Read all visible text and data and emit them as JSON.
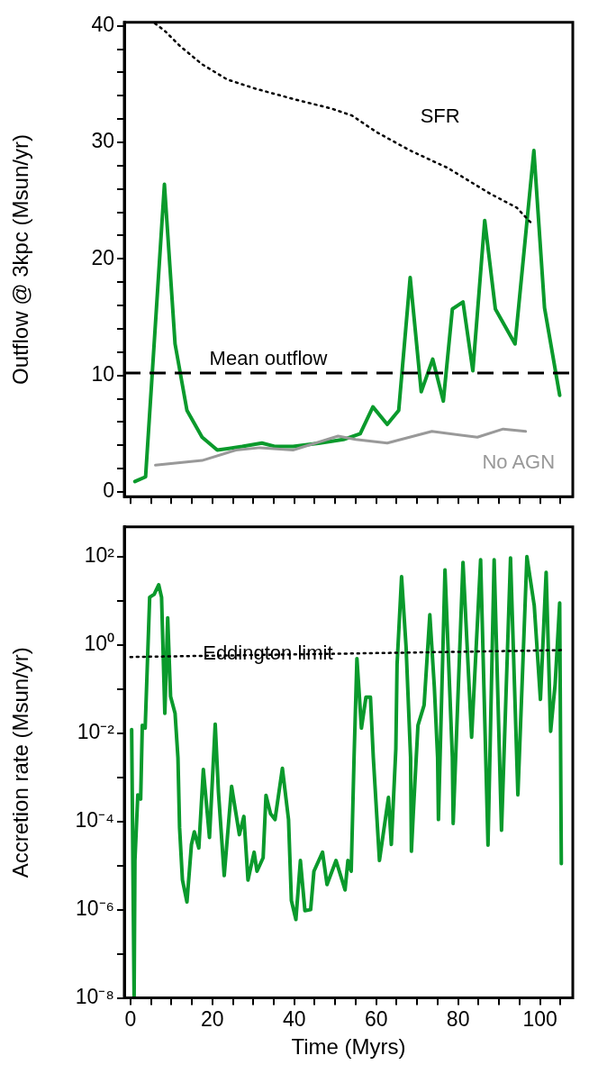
{
  "chart_data": [
    {
      "type": "line",
      "ylabel": "Outflow @ 3kpc (Msun/yr)",
      "xlim": [
        -1.5,
        108
      ],
      "ylim": [
        -0.4,
        40.3
      ],
      "xticks": [
        0,
        5,
        10,
        15,
        20,
        25,
        30,
        35,
        40,
        45,
        50,
        55,
        60,
        65,
        70,
        75,
        80,
        85,
        90,
        95,
        100,
        105
      ],
      "yticks": [
        0,
        {
          "value": 2,
          "label": null
        },
        {
          "value": 4,
          "label": null
        },
        {
          "value": 6,
          "label": null
        },
        {
          "value": 8,
          "label": null
        },
        10,
        {
          "value": 12,
          "label": null
        },
        {
          "value": 14,
          "label": null
        },
        {
          "value": 16,
          "label": null
        },
        {
          "value": 18,
          "label": null
        },
        20,
        {
          "value": 22,
          "label": null
        },
        {
          "value": 24,
          "label": null
        },
        {
          "value": 26,
          "label": null
        },
        {
          "value": 28,
          "label": null
        },
        30,
        {
          "value": 32,
          "label": null
        },
        {
          "value": 34,
          "label": null
        },
        {
          "value": 36,
          "label": null
        },
        {
          "value": 38,
          "label": null
        },
        40
      ],
      "tick_labels": "y",
      "grid": false,
      "legend": false,
      "marker": "none",
      "ref_lines": [
        {
          "axis": "y",
          "value": 10.2,
          "label": "Mean outflow",
          "color": "#000000",
          "line_style": "dashed"
        }
      ],
      "series": [
        {
          "color": "#0a9a2c",
          "line_style": "solid",
          "x": [
            1.1,
            3.7,
            8.3,
            10.9,
            13.8,
            17.5,
            21.2,
            27.3,
            32.1,
            35.4,
            39.7,
            46.3,
            52,
            56.1,
            59.2,
            62.7,
            65.5,
            68.3,
            71,
            73.8,
            76.4,
            78.6,
            81.2,
            83.6,
            86.5,
            89.1,
            93.9,
            98.5,
            101.1,
            104.8
          ],
          "values": [
            0.9,
            1.3,
            26.4,
            12.7,
            7.0,
            4.7,
            3.6,
            3.9,
            4.2,
            3.9,
            3.9,
            4.2,
            4.5,
            5.0,
            7.3,
            5.8,
            7.0,
            18.4,
            8.6,
            11.4,
            7.8,
            15.7,
            16.3,
            10.4,
            23.3,
            15.7,
            12.7,
            29.3,
            15.8,
            8.3
          ]
        },
        {
          "name": "No AGN",
          "color": "#999999",
          "line_style": "solid",
          "x": [
            6.1,
            17.5,
            25.8,
            31.7,
            39.7,
            50.7,
            55,
            62.7,
            73.6,
            84.7,
            91,
            96.5
          ],
          "values": [
            2.3,
            2.7,
            3.6,
            3.8,
            3.6,
            4.8,
            4.5,
            4.2,
            5.2,
            4.7,
            5.4,
            5.2
          ]
        },
        {
          "name": "SFR",
          "color": "#000000",
          "line_style": "dotted",
          "x": [
            6,
            8.3,
            12,
            17.5,
            23.6,
            30.6,
            40,
            49.1,
            54.1,
            60,
            68.3,
            77.5,
            87.8,
            94.3,
            97.8
          ],
          "values": [
            40.2,
            39.6,
            38.3,
            36.7,
            35.4,
            34.6,
            33.7,
            32.9,
            32.3,
            30.9,
            29.3,
            27.8,
            25.6,
            24.4,
            23.1
          ]
        }
      ]
    },
    {
      "type": "line",
      "xlabel": "Time (Myrs)",
      "ylabel": "Accretion rate (Msun/yr)",
      "log": "y",
      "xlim": [
        -1.5,
        108
      ],
      "ylim": [
        1e-08,
        470
      ],
      "xticks": [
        {
          "value": 0,
          "label": "0"
        },
        {
          "value": 5,
          "label": null
        },
        {
          "value": 10,
          "label": null
        },
        {
          "value": 15,
          "label": null
        },
        {
          "value": 20,
          "label": "20"
        },
        {
          "value": 25,
          "label": null
        },
        {
          "value": 30,
          "label": null
        },
        {
          "value": 35,
          "label": null
        },
        {
          "value": 40,
          "label": "40"
        },
        {
          "value": 45,
          "label": null
        },
        {
          "value": 50,
          "label": null
        },
        {
          "value": 55,
          "label": null
        },
        {
          "value": 60,
          "label": "60"
        },
        {
          "value": 65,
          "label": null
        },
        {
          "value": 70,
          "label": null
        },
        {
          "value": 75,
          "label": null
        },
        {
          "value": 80,
          "label": "80"
        },
        {
          "value": 85,
          "label": null
        },
        {
          "value": 90,
          "label": null
        },
        {
          "value": 95,
          "label": null
        },
        {
          "value": 100,
          "label": "100"
        },
        {
          "value": 105,
          "label": null
        }
      ],
      "yticks": [
        {
          "value": 100,
          "label": "10²"
        },
        {
          "value": 10,
          "label": null
        },
        {
          "value": 1,
          "label": "10⁰"
        },
        {
          "value": 0.1,
          "label": null
        },
        {
          "value": 0.01,
          "label": "10⁻²"
        },
        {
          "value": 0.001,
          "label": null
        },
        {
          "value": 0.0001,
          "label": "10⁻⁴"
        },
        {
          "value": 1e-05,
          "label": null
        },
        {
          "value": 1e-06,
          "label": "10⁻⁶"
        },
        {
          "value": 1e-07,
          "label": null
        },
        {
          "value": 1e-08,
          "label": "10⁻⁸"
        }
      ],
      "grid": false,
      "legend": false,
      "marker": "none",
      "series": [
        {
          "color": "#0a9a2c",
          "line_style": "solid",
          "x": [
            0.3,
            0.9,
            1.1,
            1.8,
            2.5,
            2.9,
            3.6,
            4.7,
            5.8,
            6.9,
            7.6,
            8.4,
            9.1,
            9.8,
            10.9,
            11.6,
            12.0,
            12.7,
            13.8,
            14.9,
            15.6,
            16.7,
            17.8,
            19.3,
            20.4,
            20.7,
            21.5,
            22.9,
            24.7,
            26.6,
            27.7,
            28.7,
            30.2,
            30.9,
            32.4,
            33.1,
            34.2,
            35.3,
            37.1,
            38.6,
            39.3,
            40.4,
            41.5,
            42.6,
            44.0,
            44.8,
            46.9,
            48.0,
            50.2,
            52.4,
            53.1,
            53.9,
            54.6,
            55.3,
            56.4,
            57.5,
            58.6,
            59.3,
            60.8,
            63.0,
            63.7,
            64.8,
            65.1,
            66.2,
            67.3,
            68.4,
            68.6,
            69.1,
            70.2,
            71.7,
            73.1,
            74.2,
            75.0,
            75.2,
            76.8,
            78.6,
            78.8,
            81.2,
            83.3,
            85.5,
            87.3,
            88.8,
            90.6,
            92.8,
            94.6,
            96.8,
            98.6,
            100.1,
            101.5,
            102.6,
            103.7,
            104.8,
            105.2
          ],
          "values": [
            0.012,
            1e-08,
            1.3e-05,
            0.0004,
            0.00032,
            0.015,
            0.013,
            12,
            14,
            23,
            12,
            0.028,
            4.1,
            0.068,
            0.028,
            0.0028,
            7.2e-05,
            4.7e-06,
            1.5e-06,
            3e-05,
            5.8e-05,
            2.5e-05,
            0.0015,
            4.3e-05,
            0.0044,
            0.016,
            0.00045,
            5.9e-06,
            0.00062,
            5e-05,
            0.00013,
            4.7e-06,
            2e-05,
            7.4e-06,
            1.5e-05,
            0.00039,
            0.00015,
            0.00011,
            0.0016,
            0.00011,
            1.6e-06,
            6e-07,
            1.3e-05,
            9.5e-07,
            1e-06,
            7.4e-06,
            2e-05,
            3.7e-06,
            1.3e-05,
            2.8e-06,
            1.3e-05,
            7.4e-06,
            0.0028,
            0.49,
            0.013,
            0.065,
            0.065,
            0.0028,
            1.3e-05,
            0.00035,
            3e-05,
            0.0044,
            0.36,
            35,
            0.89,
            0.0028,
            2.1e-05,
            0.00018,
            0.015,
            0.043,
            4.8,
            0.11,
            0.0028,
            0.00011,
            50,
            0.0028,
            9e-05,
            74,
            0.0081,
            85,
            2.9e-05,
            85,
            6.3e-05,
            93,
            0.0004,
            100,
            7.6,
            0.058,
            44,
            0.011,
            0.13,
            8.9,
            1.1e-05
          ]
        },
        {
          "name": "Eddington limit",
          "color": "#000000",
          "line_style": "dotted",
          "x": [
            0,
            106
          ],
          "values": [
            0.53,
            0.76
          ]
        }
      ]
    }
  ]
}
